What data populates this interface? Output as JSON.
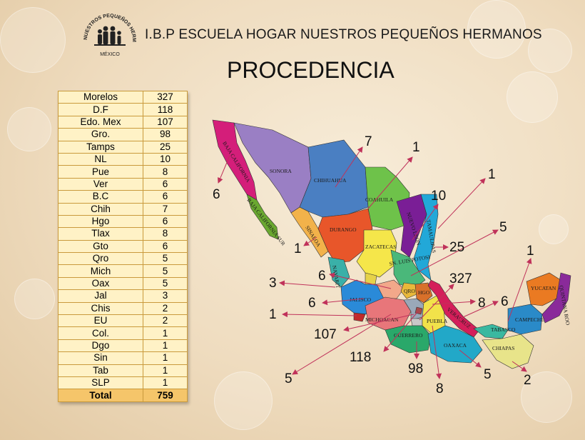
{
  "header": {
    "title": "I.B.P ESCUELA HOGAR NUESTROS PEQUEÑOS HERMANOS",
    "logo_arc_text": "NUESTROS PEQUEÑOS HERMANOS",
    "logo_bottom_text": "MÉXICO"
  },
  "page_title": "PROCEDENCIA",
  "table": {
    "rows": [
      {
        "state": "Morelos",
        "count": "327"
      },
      {
        "state": "D.F",
        "count": "118"
      },
      {
        "state": "Edo. Mex",
        "count": "107"
      },
      {
        "state": "Gro.",
        "count": "98"
      },
      {
        "state": "Tamps",
        "count": "25"
      },
      {
        "state": "NL",
        "count": "10"
      },
      {
        "state": "Pue",
        "count": "8"
      },
      {
        "state": "Ver",
        "count": "6"
      },
      {
        "state": "B.C",
        "count": "6"
      },
      {
        "state": "Chih",
        "count": "7"
      },
      {
        "state": "Hgo",
        "count": "6"
      },
      {
        "state": "Tlax",
        "count": "8"
      },
      {
        "state": "Gto",
        "count": "6"
      },
      {
        "state": "Qro",
        "count": "5"
      },
      {
        "state": "Mich",
        "count": "5"
      },
      {
        "state": "Oax",
        "count": "5"
      },
      {
        "state": "Jal",
        "count": "3"
      },
      {
        "state": "Chis",
        "count": "2"
      },
      {
        "state": "EU",
        "count": "2"
      },
      {
        "state": "Col.",
        "count": "1"
      },
      {
        "state": "Dgo",
        "count": "1"
      },
      {
        "state": "Sin",
        "count": "1"
      },
      {
        "state": "Tab",
        "count": "1"
      },
      {
        "state": "SLP",
        "count": "1"
      }
    ],
    "total_label": "Total",
    "total_value": "759"
  },
  "map": {
    "state_labels": {
      "sonora": "SONORA",
      "chihuahua": "CHIHUAHUA",
      "coahuila": "COAHUILA",
      "nuevo_leon": "NUEVO LEON",
      "tamaulipas": "TAMAULIPAS",
      "sinaloa": "SINALOA",
      "durango": "DURANGO",
      "zacatecas": "ZACATECAS",
      "slp": "SN. LUIS POTOSI",
      "nayarit": "NAYARIT",
      "jalisco": "JALISCO",
      "qro": "QRO",
      "michoacan": "MICHOACAN",
      "guerrero": "GUERRERO",
      "oaxaca": "OAXACA",
      "puebla": "PUEBLA",
      "veracruz": "VERACRUZ",
      "chiapas": "CHIAPAS",
      "tabasco": "TABASCO",
      "campeche": "CAMPECHE",
      "yucatan": "YUCATAN",
      "quintana_roo": "QUINTANA ROO",
      "bc": "BAJA CALIFORNIA",
      "bcs": "BAJA CALIFORNIA SUR",
      "hidalgo": "HGO"
    },
    "callouts": {
      "bc": "6",
      "chihuahua": "7",
      "coahuila": "1",
      "eu": "1",
      "nuevo_leon": "10",
      "sinaloa": "1",
      "tamaulipas": "25",
      "slp": "5",
      "yucatan": "1",
      "nayarit": "3",
      "guanajuato": "6",
      "morelos": "327",
      "jalisco_left": "6",
      "colima": "1",
      "tlaxcala": "8",
      "veracruz": "6",
      "edomex": "107",
      "df": "118",
      "guerrero": "98",
      "michoacan": "5",
      "puebla": "8",
      "oaxaca": "5",
      "chiapas": "2"
    }
  },
  "colors": {
    "arrow": "#c0325a",
    "table_cell": "#fff2c6",
    "table_total": "#f5c56a",
    "table_border": "#c99a3c"
  }
}
